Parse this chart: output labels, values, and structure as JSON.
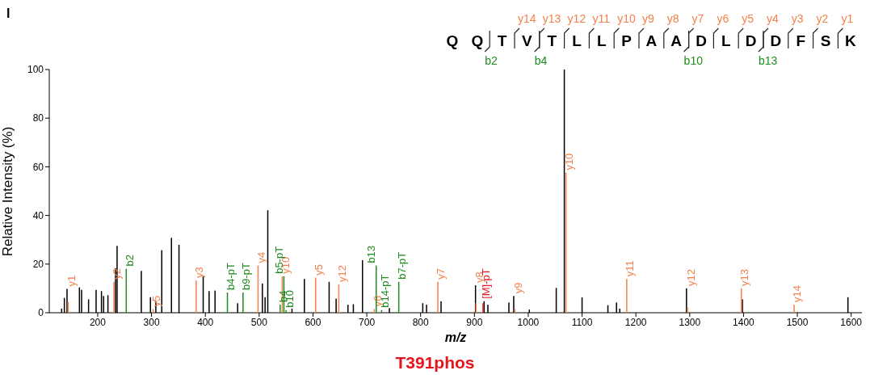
{
  "chart_data": {
    "type": "bar",
    "xlabel": "m/z",
    "ylabel": "Relative Intensity (%)",
    "title": "T391phos",
    "annotations": [
      "I",
      "Q Q T V T L L P A A D L D D F S K",
      "y14",
      "y13",
      "y12",
      "y11",
      "y10",
      "y9",
      "y8",
      "y7",
      "y6",
      "y5",
      "y4",
      "y3",
      "y2",
      "y1",
      "b2",
      "b4",
      "b10",
      "b13"
    ],
    "xlim": [
      110,
      1620
    ],
    "xticks": [
      200,
      300,
      400,
      500,
      600,
      700,
      800,
      900,
      1000,
      1100,
      1200,
      1300,
      1400,
      1500,
      1600
    ],
    "ylim": [
      0,
      100
    ],
    "yticks": [
      0,
      20,
      40,
      60,
      80,
      100
    ],
    "series": [
      {
        "color": "#000000",
        "x": [
          133,
          138,
          143,
          166,
          170,
          183,
          197,
          207,
          211,
          219,
          233,
          236,
          281,
          298,
          308,
          319,
          337,
          351,
          396,
          407,
          418,
          460,
          506,
          511,
          516,
          561,
          584,
          630,
          643,
          665,
          675,
          692,
          742,
          804,
          811,
          838,
          902,
          918,
          925,
          964,
          973,
          1002,
          1052,
          1067,
          1100,
          1148,
          1164,
          1170,
          1294,
          1398,
          1594
        ],
        "values": [
          1.7,
          6.1,
          9.8,
          10.4,
          9.4,
          5.5,
          9.4,
          8.9,
          6.9,
          7.2,
          18.3,
          27.5,
          17.2,
          6.4,
          4.7,
          25.7,
          30.8,
          27.9,
          15,
          8.9,
          9.1,
          3.9,
          12,
          6.4,
          42.1,
          1.7,
          13.9,
          12.7,
          5.8,
          3.3,
          3.5,
          21.6,
          1.9,
          3.9,
          3.3,
          4.7,
          11.3,
          4.7,
          3.3,
          4.2,
          6.9,
          1.3,
          10.2,
          100,
          6.3,
          3.1,
          4.2,
          1.7,
          10,
          5.5,
          6.4
        ]
      },
      {
        "color": "#f5804a",
        "x": [
          145,
          230,
          303,
          383,
          498,
          543,
          605,
          648,
          714,
          832,
          903,
          975,
          1070,
          1183,
          1296,
          1396,
          1494
        ],
        "values": [
          4.4,
          12.7,
          1.5,
          13.3,
          19.4,
          15,
          14.4,
          11.6,
          1.5,
          12.7,
          4,
          1.5,
          57.6,
          13.9,
          2.2,
          10,
          3.3
        ],
        "value_labels": [
          "y1",
          "y2",
          "y5",
          "y3",
          "y4",
          "y10",
          "y5",
          "y12",
          "y6",
          "y7",
          "y8",
          "y9",
          "y10",
          "y11",
          "y12",
          "y13",
          "y14"
        ]
      },
      {
        "color": "#1e8c1e",
        "x": [
          253,
          441,
          470,
          539,
          546,
          550,
          717.5,
          727.5,
          759.4
        ],
        "values": [
          18.1,
          8.3,
          8.3,
          3.3,
          15,
          1.1,
          19.4,
          1.1,
          12.7
        ],
        "value_labels": [
          "b2",
          "b4-pT",
          "b9-pT",
          "b4",
          "b5-pT",
          "b10",
          "b13",
          "b14-pT",
          "b7-pT"
        ]
      },
      {
        "color": "#e8131b",
        "x": [
          916
        ],
        "values": [
          3.9
        ],
        "value_labels": [
          "[M]-pT"
        ]
      }
    ]
  }
}
